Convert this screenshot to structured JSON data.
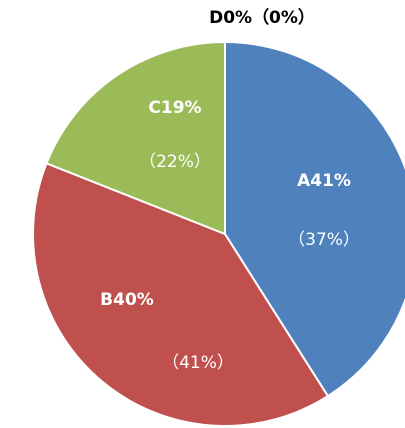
{
  "chart_data": {
    "type": "pie",
    "categories": [
      "A",
      "B",
      "C",
      "D"
    ],
    "values": [
      41,
      40,
      19,
      0
    ],
    "value_labels": [
      "41%",
      "40%",
      "19%",
      "0%"
    ],
    "sub_labels": [
      "（37%）",
      "（41%）",
      "（22%）",
      "（0%）"
    ],
    "colors": [
      "#4f81bd",
      "#c0504d",
      "#9bbb59",
      "#8064a2"
    ]
  }
}
